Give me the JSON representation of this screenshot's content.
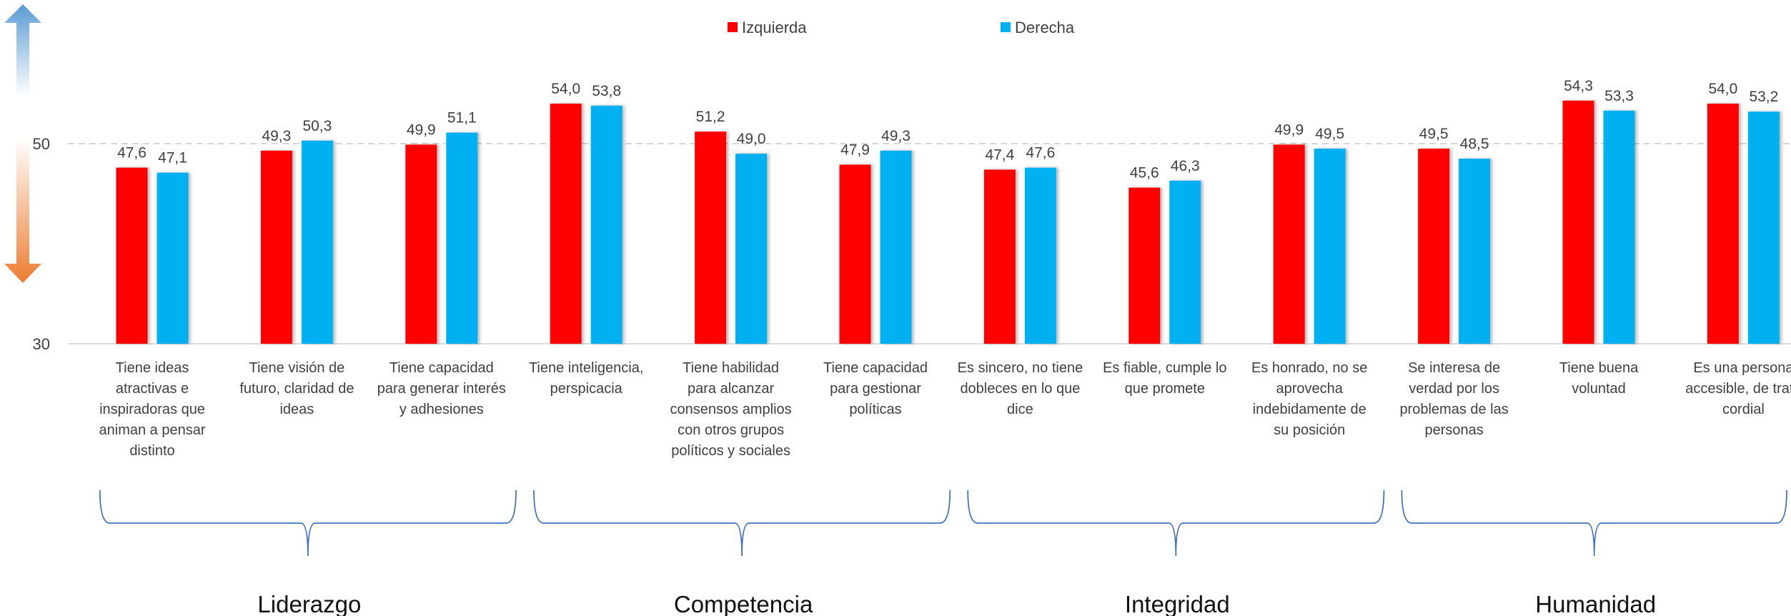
{
  "chart_data": {
    "type": "bar",
    "title": "",
    "xlabel": "",
    "ylabel": "",
    "ylim": [
      30,
      55
    ],
    "yticks": [
      30,
      50
    ],
    "grid": "dashed line at 50",
    "legend_position": "top-center",
    "colors": {
      "Izquierda": "#ff0000",
      "Derecha": "#00b0f0",
      "grid": "#c8c8c8",
      "brace": "#4472c4",
      "arrow_up": "#5b9bd5",
      "arrow_down": "#ed7d31"
    },
    "categories": [
      [
        "Tiene ideas",
        "atractivas e",
        "inspiradoras que",
        "animan a pensar",
        "distinto"
      ],
      [
        "Tiene visión de",
        "futuro, claridad de",
        "ideas"
      ],
      [
        "Tiene capacidad",
        "para generar interés",
        "y adhesiones"
      ],
      [
        "Tiene inteligencia,",
        "perspicacia"
      ],
      [
        "Tiene habilidad",
        "para alcanzar",
        "consensos amplios",
        "con otros grupos",
        "políticos y sociales"
      ],
      [
        "Tiene capacidad",
        "para gestionar",
        "políticas"
      ],
      [
        "Es sincero, no tiene",
        "dobleces en lo que",
        "dice"
      ],
      [
        "Es fiable, cumple lo",
        "que promete"
      ],
      [
        "Es honrado, no se",
        "aprovecha",
        "indebidamente de",
        "su posición"
      ],
      [
        "Se interesa de",
        "verdad por los",
        "problemas de las",
        "personas"
      ],
      [
        "Tiene buena",
        "voluntad"
      ],
      [
        "Es una persona",
        "accesible, de trato",
        "cordial"
      ]
    ],
    "series": [
      {
        "name": "Izquierda",
        "values": [
          47.6,
          49.3,
          49.9,
          54.0,
          51.2,
          47.9,
          47.4,
          45.6,
          49.9,
          49.5,
          54.3,
          54.0
        ],
        "labels": [
          "47,6",
          "49,3",
          "49,9",
          "54,0",
          "51,2",
          "47,9",
          "47,4",
          "45,6",
          "49,9",
          "49,5",
          "54,3",
          "54,0"
        ]
      },
      {
        "name": "Derecha",
        "values": [
          47.1,
          50.3,
          51.1,
          53.8,
          49.0,
          49.3,
          47.6,
          46.3,
          49.5,
          48.5,
          53.3,
          53.2
        ],
        "labels": [
          "47,1",
          "50,3",
          "51,1",
          "53,8",
          "49,0",
          "49,3",
          "47,6",
          "46,3",
          "49,5",
          "48,5",
          "53,3",
          "53,2"
        ]
      }
    ],
    "groups": [
      {
        "name": "Liderazgo",
        "categories": [
          0,
          1,
          2
        ]
      },
      {
        "name": "Competencia",
        "categories": [
          3,
          4,
          5
        ]
      },
      {
        "name": "Integridad",
        "categories": [
          6,
          7,
          8
        ]
      },
      {
        "name": "Humanidad",
        "categories": [
          9,
          10,
          11
        ]
      }
    ]
  }
}
